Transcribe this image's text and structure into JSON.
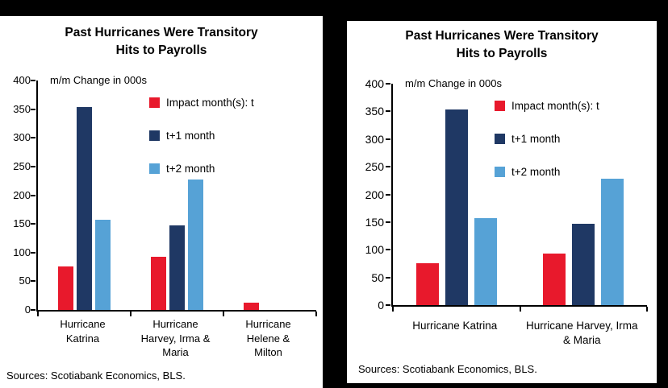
{
  "chart_data": [
    {
      "type": "bar",
      "title": "Past Hurricanes Were Transitory Hits to Payrolls",
      "title_lines": [
        "Past Hurricanes Were Transitory",
        "Hits to Payrolls"
      ],
      "axis_note": "m/m Change in 000s",
      "ylabel": "m/m Change in 000s",
      "ylim": [
        0,
        400
      ],
      "ytick_step": 50,
      "grid": false,
      "legend_position": "upper-right-inside",
      "categories": [
        "Hurricane\nKatrina",
        "Hurricane\nHarvey, Irma &\nMaria",
        "Hurricane\nHelene &\nMilton"
      ],
      "series": [
        {
          "name": "Impact month(s): t",
          "color": "#e8192c",
          "values": [
            76,
            93,
            13
          ]
        },
        {
          "name": "t+1 month",
          "color": "#1f3864",
          "values": [
            354,
            147,
            0
          ]
        },
        {
          "name": "t+2 month",
          "color": "#56a2d6",
          "values": [
            157,
            228,
            0
          ]
        }
      ],
      "source": "Sources: Scotiabank Economics, BLS."
    },
    {
      "type": "bar",
      "title": "Past Hurricanes Were Transitory Hits to Payrolls",
      "title_lines": [
        "Past Hurricanes Were Transitory",
        "Hits to Payrolls"
      ],
      "axis_note": "m/m Change in 000s",
      "ylabel": "m/m Change in 000s",
      "ylim": [
        0,
        400
      ],
      "ytick_step": 50,
      "grid": false,
      "legend_position": "upper-right-inside",
      "categories": [
        "Hurricane Katrina",
        "Hurricane Harvey, Irma\n& Maria"
      ],
      "series": [
        {
          "name": "Impact month(s): t",
          "color": "#e8192c",
          "values": [
            76,
            93
          ]
        },
        {
          "name": "t+1 month",
          "color": "#1f3864",
          "values": [
            354,
            147
          ]
        },
        {
          "name": "t+2 month",
          "color": "#56a2d6",
          "values": [
            157,
            228
          ]
        }
      ],
      "source": "Sources: Scotiabank Economics, BLS."
    }
  ],
  "colors": {
    "impact_month": "#e8192c",
    "t_plus_1": "#1f3864",
    "t_plus_2": "#56a2d6",
    "background": "#000000",
    "panel": "#ffffff"
  }
}
